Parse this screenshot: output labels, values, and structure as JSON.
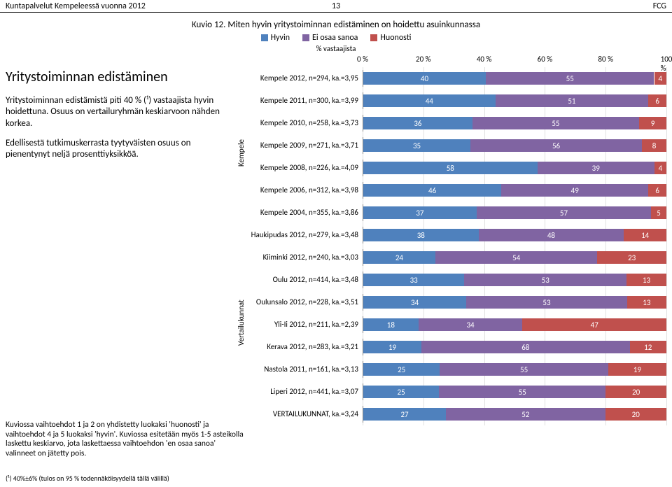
{
  "header": {
    "left": "Kuntapalvelut Kempeleessä vuonna 2012",
    "right": "FCG",
    "page": "13"
  },
  "chart": {
    "title": "Kuvio 12. Miten hyvin yritystoiminnan edistäminen on hoidettu asuinkunnassa",
    "x_axis_label": "% vastaajista",
    "legend": [
      {
        "label": "Hyvin",
        "color": "#4f81bd"
      },
      {
        "label": "Ei osaa sanoa",
        "color": "#8064a2"
      },
      {
        "label": "Huonosti",
        "color": "#c0504d"
      }
    ],
    "ticks": [
      "0 %",
      "20 %",
      "40 %",
      "60 %",
      "80 %",
      "100 %"
    ],
    "tick_positions": [
      0,
      20,
      40,
      60,
      80,
      100
    ],
    "colors": {
      "hyvin": "#4f81bd",
      "eos": "#8064a2",
      "huonosti": "#c0504d",
      "grid": "#e0e0e0"
    },
    "groups": [
      {
        "ylabel": "Kempele",
        "rows": [
          {
            "label": "Kempele 2012, n=294, ka.=3,95",
            "v": [
              40,
              55,
              4
            ]
          },
          {
            "label": "Kempele 2011, n=300, ka.=3,99",
            "v": [
              44,
              51,
              6
            ]
          },
          {
            "label": "Kempele 2010, n=258, ka.=3,73",
            "v": [
              36,
              55,
              9
            ]
          },
          {
            "label": "Kempele 2009, n=271, ka.=3,71",
            "v": [
              35,
              56,
              8
            ]
          },
          {
            "label": "Kempele 2008, n=226, ka.=4,09",
            "v": [
              58,
              39,
              4
            ]
          },
          {
            "label": "Kempele 2006, n=312, ka.=3,98",
            "v": [
              46,
              49,
              6
            ]
          },
          {
            "label": "Kempele 2004, n=355, ka.=3,86",
            "v": [
              37,
              57,
              5
            ]
          }
        ]
      },
      {
        "ylabel": "Vertailukunnat",
        "rows": [
          {
            "label": "Haukipudas 2012, n=279, ka.=3,48",
            "v": [
              38,
              48,
              14
            ]
          },
          {
            "label": "Kiiminki 2012, n=240, ka.=3,03",
            "v": [
              24,
              54,
              23
            ]
          },
          {
            "label": "Oulu 2012, n=414, ka.=3,48",
            "v": [
              33,
              53,
              13
            ]
          },
          {
            "label": "Oulunsalo 2012, n=228, ka.=3,51",
            "v": [
              34,
              53,
              13
            ]
          },
          {
            "label": "Yli-Ii 2012, n=211, ka.=2,39",
            "v": [
              18,
              34,
              47
            ]
          },
          {
            "label": "Kerava 2012, n=283, ka.=3,21",
            "v": [
              19,
              68,
              12
            ]
          },
          {
            "label": "Nastola 2011, n=161, ka.=3,13",
            "v": [
              25,
              55,
              19
            ]
          },
          {
            "label": "Liperi 2012, n=441, ka.=3,07",
            "v": [
              25,
              55,
              20
            ]
          },
          {
            "label": "VERTAILUKUNNAT, ka.=3,24",
            "v": [
              27,
              52,
              20
            ]
          }
        ]
      }
    ]
  },
  "left": {
    "heading": "Yritystoiminnan edistäminen",
    "p1": "Yritystoiminnan edistämistä piti 40 % (¹) vastaajista hyvin hoidettuna. Osuus on vertailuryhmän keskiarvoon nähden korkea.",
    "p2": "Edellisestä tutkimuskerrasta tyytyväisten osuus on pienentynyt neljä prosenttiyksikköä."
  },
  "bottom_left": "Kuviossa vaihtoehdot 1 ja 2 on yhdistetty luokaksi 'huonosti' ja vaihtoehdot 4 ja 5 luokaksi 'hyvin'. Kuviossa esitetään myös 1-5 asteikolla laskettu keskiarvo, jota laskettaessa vaihtoehdon 'en osaa sanoa' valinneet on jätetty pois.",
  "footnote": "(¹) 40%±6% (tulos on 95 % todennäköisyydellä tällä välillä)"
}
